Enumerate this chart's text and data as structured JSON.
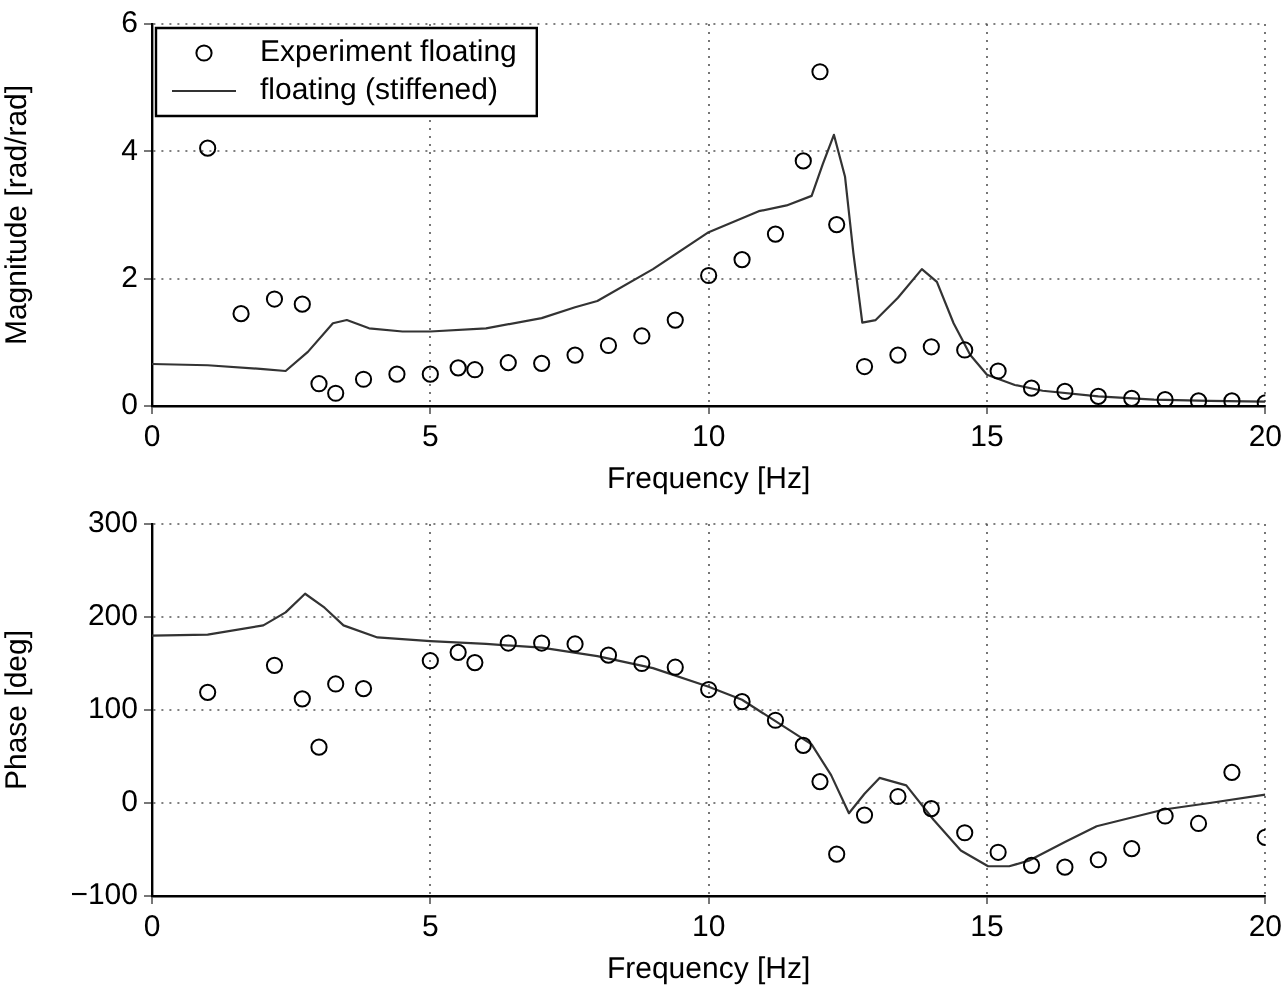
{
  "chart_data": [
    {
      "type": "scatter",
      "xlabel": "Frequency [Hz]",
      "ylabel": "Magnitude [rad/rad]",
      "xlim": [
        0,
        20
      ],
      "ylim": [
        0,
        6
      ],
      "xticks": [
        0,
        5,
        10,
        15,
        20
      ],
      "yticks": [
        0,
        2,
        4,
        6
      ],
      "grid": true,
      "legend": "top left",
      "series": [
        {
          "name": "Experiment floating",
          "marker": "circle",
          "color": "#000000",
          "x": [
            1.0,
            1.6,
            2.2,
            2.7,
            3.0,
            3.3,
            3.8,
            4.4,
            5.0,
            5.5,
            5.8,
            6.4,
            7.0,
            7.6,
            8.2,
            8.8,
            9.4,
            10.0,
            10.6,
            11.2,
            11.7,
            12.0,
            12.3,
            12.8,
            13.4,
            14.0,
            14.6,
            15.2,
            15.8,
            16.4,
            17.0,
            17.6,
            18.2,
            18.8,
            19.4,
            20.0
          ],
          "values": [
            4.05,
            1.45,
            1.68,
            1.6,
            0.35,
            0.2,
            0.42,
            0.5,
            0.5,
            0.6,
            0.57,
            0.68,
            0.67,
            0.8,
            0.95,
            1.1,
            1.35,
            2.05,
            2.3,
            2.7,
            3.85,
            5.25,
            2.85,
            0.62,
            0.8,
            0.93,
            0.88,
            0.55,
            0.28,
            0.23,
            0.15,
            0.12,
            0.1,
            0.08,
            0.08,
            0.05
          ]
        },
        {
          "name": "floating (stiffened)",
          "type": "line",
          "marker": "none",
          "color": "#333333",
          "x": [
            0,
            1,
            2,
            2.4,
            2.8,
            3.25,
            3.5,
            3.9,
            4.5,
            5.0,
            6.0,
            7.0,
            7.6,
            8.0,
            9.0,
            10.0,
            10.9,
            11.4,
            11.85,
            12.05,
            12.25,
            12.45,
            12.6,
            12.76,
            13.0,
            13.4,
            13.83,
            14.1,
            14.4,
            14.7,
            15.0,
            15.5,
            16.0,
            17.0,
            18.0,
            19.0,
            20.0
          ],
          "values": [
            0.66,
            0.64,
            0.58,
            0.55,
            0.85,
            1.3,
            1.35,
            1.22,
            1.17,
            1.17,
            1.22,
            1.38,
            1.55,
            1.65,
            2.15,
            2.73,
            3.06,
            3.15,
            3.3,
            3.8,
            4.26,
            3.6,
            2.4,
            1.31,
            1.35,
            1.7,
            2.15,
            1.95,
            1.3,
            0.8,
            0.49,
            0.33,
            0.24,
            0.15,
            0.1,
            0.08,
            0.07
          ]
        }
      ]
    },
    {
      "type": "scatter",
      "xlabel": "Frequency [Hz]",
      "ylabel": "Phase [deg]",
      "xlim": [
        0,
        20
      ],
      "ylim": [
        -100,
        300
      ],
      "xticks": [
        0,
        5,
        10,
        15,
        20
      ],
      "yticks": [
        {
          "value": -100,
          "label": "−100"
        },
        0,
        100,
        200,
        300
      ],
      "grid": true,
      "series": [
        {
          "marker": "circle",
          "color": "#000000",
          "x": [
            1.0,
            2.2,
            2.7,
            3.0,
            3.3,
            3.8,
            5.0,
            5.5,
            5.8,
            6.4,
            7.0,
            7.6,
            8.2,
            8.8,
            9.4,
            10.0,
            10.6,
            11.2,
            11.7,
            12.0,
            12.3,
            12.8,
            13.4,
            14.0,
            14.6,
            15.2,
            15.8,
            16.4,
            17.0,
            17.6,
            18.2,
            18.8,
            19.4,
            20.0
          ],
          "values": [
            119,
            148,
            112,
            60,
            128,
            123,
            153,
            162,
            151,
            172,
            172,
            171,
            159,
            150,
            146,
            122,
            109,
            89,
            62,
            23,
            -55,
            -13,
            7,
            -6,
            -32,
            -53,
            -67,
            -69,
            -61,
            -49,
            -14,
            -22,
            33,
            -37
          ]
        },
        {
          "type": "line",
          "marker": "none",
          "color": "#333333",
          "x": [
            0,
            1.0,
            2.0,
            2.4,
            2.75,
            3.1,
            3.44,
            4.05,
            5.0,
            6.0,
            7.0,
            8.0,
            9.0,
            10.0,
            10.6,
            11.2,
            11.85,
            12.2,
            12.52,
            12.8,
            13.07,
            13.55,
            14.04,
            14.53,
            15.02,
            15.4,
            15.75,
            16.4,
            16.97,
            18.18,
            19.0,
            20.0
          ],
          "values": [
            180,
            181,
            191,
            205,
            225,
            210,
            191,
            178,
            174,
            171,
            167,
            158,
            145,
            125,
            111,
            88,
            63,
            30,
            -11,
            10,
            27,
            19,
            -18,
            -51,
            -68,
            -68,
            -62,
            -42,
            -25,
            -7,
            0,
            9
          ]
        }
      ]
    }
  ]
}
